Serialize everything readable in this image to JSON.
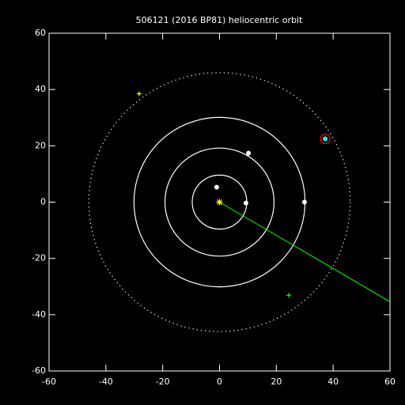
{
  "chart_data": {
    "type": "orbit",
    "title": "506121 (2016 BP81) heliocentric orbit",
    "xlim": [
      -60,
      60
    ],
    "ylim": [
      -60,
      60
    ],
    "xticks": [
      -60,
      -40,
      -20,
      0,
      20,
      40,
      60
    ],
    "yticks": [
      -60,
      -40,
      -20,
      0,
      20,
      40,
      60
    ],
    "orbits": [
      {
        "radius": 9.6,
        "style": "solid"
      },
      {
        "radius": 19.2,
        "style": "solid"
      },
      {
        "radius": 30.1,
        "style": "solid"
      },
      {
        "radius": 46,
        "style": "dotted"
      }
    ],
    "planets": {
      "x": [
        -1,
        9.3,
        10.2,
        29.9
      ],
      "y": [
        5.3,
        -0.3,
        17.4,
        0
      ],
      "color": "#ffffff"
    },
    "object": {
      "x": 37.2,
      "y": 22.5,
      "color": "#00ffff",
      "ring_color": "#ff0000"
    },
    "markers": [
      {
        "x": -28.3,
        "y": 38.5,
        "color": "#ffff00"
      },
      {
        "x": 24.4,
        "y": -33.1,
        "color": "#00ff00"
      }
    ],
    "sun": {
      "x": 0,
      "y": 0,
      "color": "#ffff00"
    },
    "line": {
      "x": [
        0,
        60
      ],
      "y": [
        0,
        -35.4
      ],
      "color": "#00ff00"
    }
  }
}
